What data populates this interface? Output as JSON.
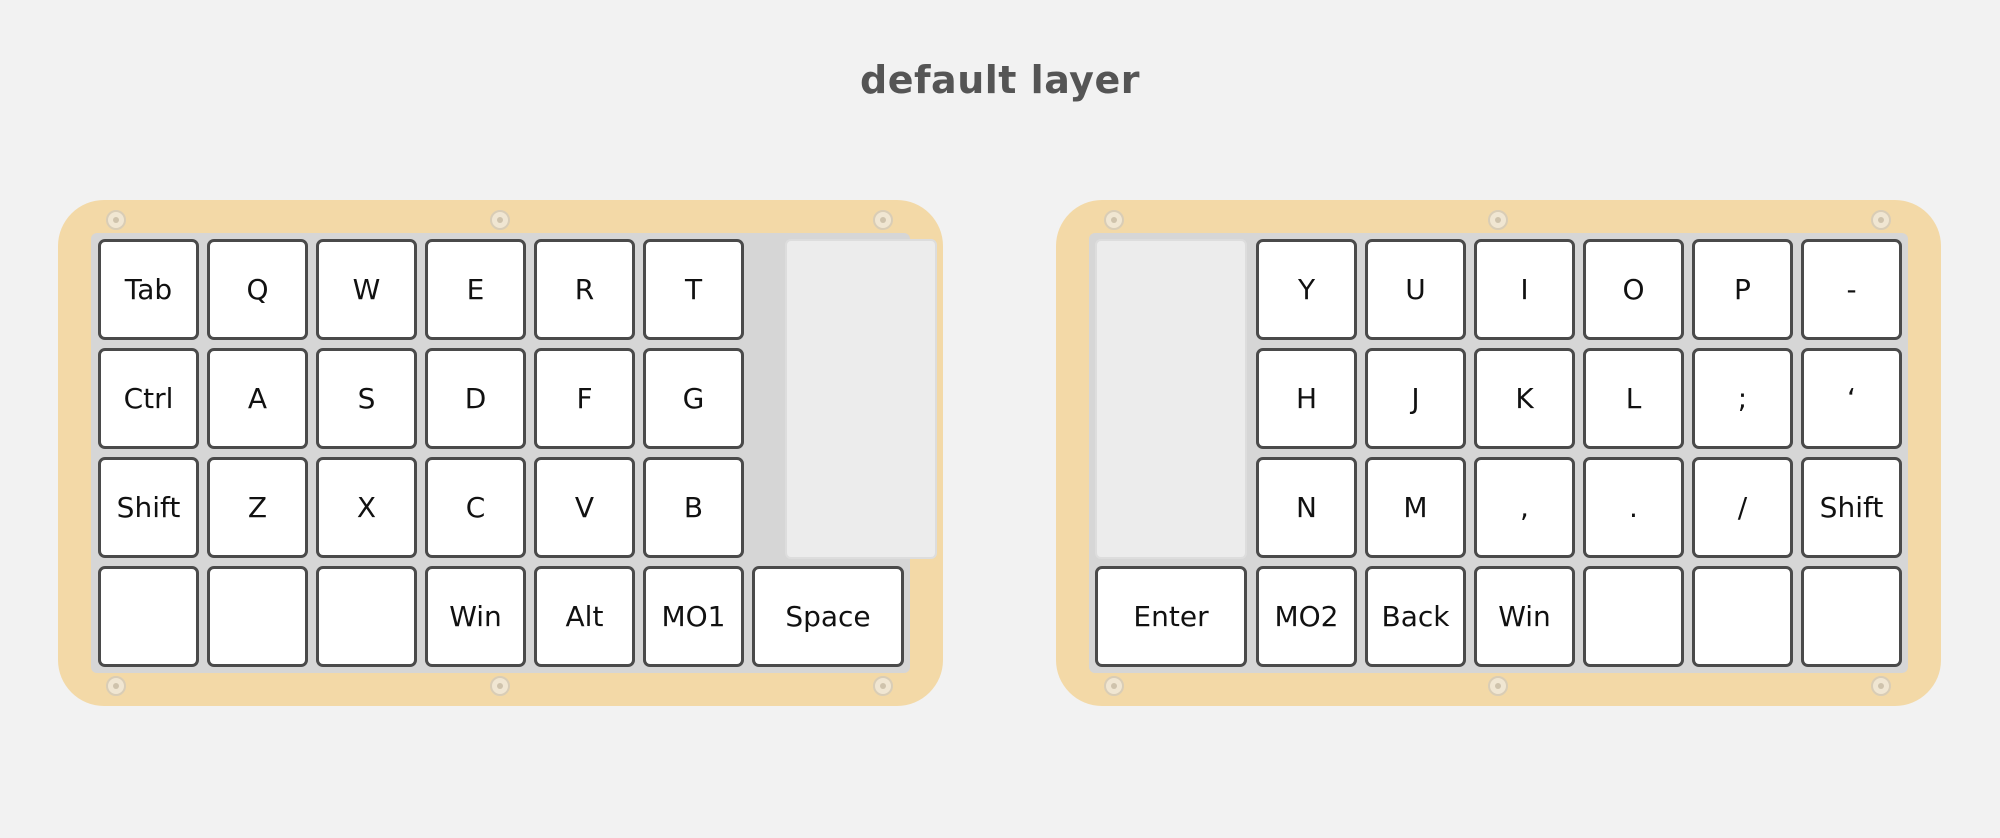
{
  "title": "default layer",
  "left": {
    "rows": [
      [
        "Tab",
        "Q",
        "W",
        "E",
        "R",
        "T"
      ],
      [
        "Ctrl",
        "A",
        "S",
        "D",
        "F",
        "G"
      ],
      [
        "Shift",
        "Z",
        "X",
        "C",
        "V",
        "B"
      ],
      [
        "",
        "",
        "",
        "Win",
        "Alt",
        "MO1"
      ]
    ],
    "thumb_wide": "Space"
  },
  "right": {
    "rows": [
      [
        "Y",
        "U",
        "I",
        "O",
        "P",
        "-"
      ],
      [
        "H",
        "J",
        "K",
        "L",
        ";",
        "‘"
      ],
      [
        "N",
        "M",
        ",",
        ".",
        "/",
        "Shift"
      ],
      [
        "MO2",
        "Back",
        "Win",
        "",
        "",
        ""
      ]
    ],
    "thumb_wide": "Enter"
  }
}
